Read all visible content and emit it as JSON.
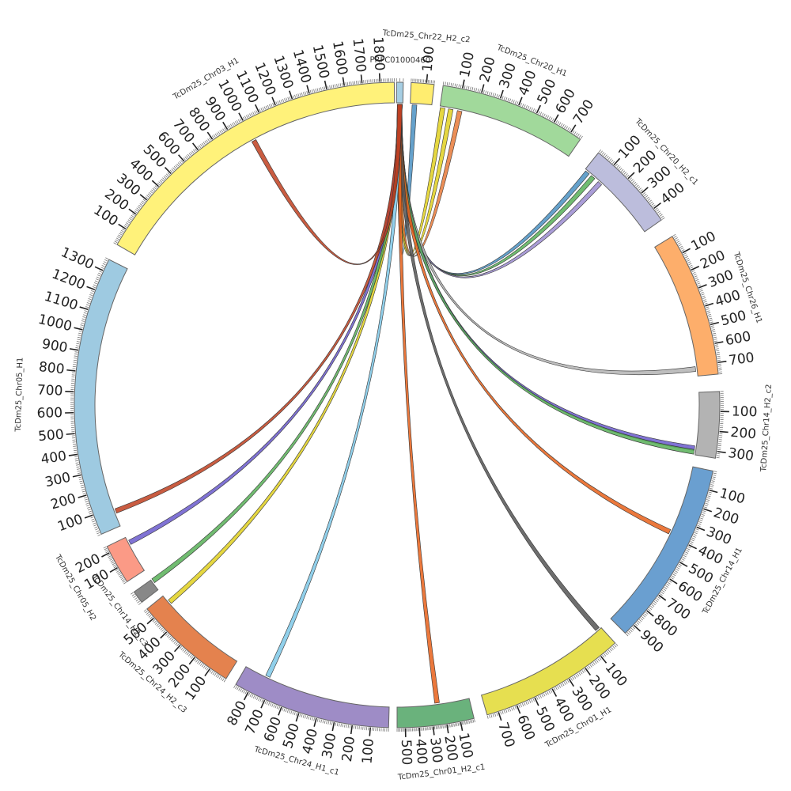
{
  "segments": [
    {
      "id": "PRFC01000460",
      "label": "PRFC01000460",
      "length": 20,
      "color": "#a6cee3",
      "tick_labels": []
    },
    {
      "id": "TcDm25_Chr22_H2_c2",
      "label": "TcDm25_Chr22_H2_c2",
      "length": 150,
      "color": "#ffed6f",
      "tick_labels": [
        "100"
      ]
    },
    {
      "id": "TcDm25_Chr20_H1",
      "label": "TcDm25_Chr20_H1",
      "length": 760,
      "color": "#a1d99b",
      "tick_labels": [
        "100",
        "200",
        "300",
        "400",
        "500",
        "600",
        "700"
      ]
    },
    {
      "id": "TcDm25_Chr20_H2_c1",
      "label": "TcDm25_Chr20_H2_c1",
      "length": 470,
      "color": "#bcbddc",
      "tick_labels": [
        "100",
        "200",
        "300",
        "400"
      ]
    },
    {
      "id": "TcDm25_Chr26_H1",
      "label": "TcDm25_Chr26_H1",
      "length": 760,
      "color": "#fdae6b",
      "tick_labels": [
        "100",
        "200",
        "300",
        "400",
        "500",
        "600",
        "700"
      ]
    },
    {
      "id": "TcDm25_Chr14_H2_c2",
      "label": "TcDm25_Chr14_H2_c2",
      "length": 335,
      "color": "#b3b3b3",
      "tick_labels": [
        "100",
        "200",
        "300"
      ]
    },
    {
      "id": "TcDm25_Chr14_H1",
      "label": "TcDm25_Chr14_H1",
      "length": 960,
      "color": "#6a9fd0",
      "tick_labels": [
        "100",
        "200",
        "300",
        "400",
        "500",
        "600",
        "700",
        "800",
        "900"
      ]
    },
    {
      "id": "TcDm25_Chr01_H1",
      "label": "TcDm25_Chr01_H1",
      "length": 760,
      "color": "#e6df50",
      "tick_labels": [
        "100",
        "200",
        "300",
        "400",
        "500",
        "600",
        "700"
      ]
    },
    {
      "id": "TcDm25_Chr01_H2_c1",
      "label": "TcDm25_Chr01_H2_c1",
      "length": 560,
      "color": "#6ab27c",
      "tick_labels": [
        "100",
        "200",
        "300",
        "400",
        "500"
      ]
    },
    {
      "id": "TcDm25_Chr24_H1_c1",
      "label": "TcDm25_Chr24_H1_c1",
      "length": 880,
      "color": "#9e8cc6",
      "tick_labels": [
        "100",
        "200",
        "300",
        "400",
        "500",
        "600",
        "700",
        "800"
      ]
    },
    {
      "id": "TcDm25_Chr24_H2_c3",
      "label": "TcDm25_Chr24_H2_c3",
      "length": 560,
      "color": "#e4824e",
      "tick_labels": [
        "100",
        "200",
        "300",
        "400",
        "500"
      ]
    },
    {
      "id": "TcDm25_Chr14_H2_c3",
      "label": "TcDm25_Chr14_H2_c3",
      "length": 60,
      "color": "#888888",
      "tick_labels": []
    },
    {
      "id": "TcDm25_Chr05_H2",
      "label": "TcDm25_Chr05_H2",
      "length": 240,
      "color": "#fb9a86",
      "tick_labels": [
        "100",
        "200"
      ]
    },
    {
      "id": "TcDm25_Chr05_H1",
      "label": "TcDm25_Chr05_H1",
      "length": 1360,
      "color": "#9ecae1",
      "tick_labels": [
        "100",
        "200",
        "300",
        "400",
        "500",
        "600",
        "700",
        "800",
        "900",
        "1000",
        "1100",
        "1200",
        "1300"
      ]
    },
    {
      "id": "TcDm25_Chr03_H1",
      "label": "TcDm25_Chr03_H1",
      "length": 1880,
      "color": "#fff27a",
      "tick_labels": [
        "100",
        "200",
        "300",
        "400",
        "500",
        "600",
        "700",
        "800",
        "900",
        "1000",
        "1100",
        "1200",
        "1300",
        "1400",
        "1500",
        "1600",
        "1700",
        "1800"
      ]
    }
  ],
  "links": [
    {
      "source": "PRFC01000460",
      "s_pos": 10,
      "target": "TcDm25_Chr22_H2_c2",
      "t_pos": 30,
      "color": "#4a90c2"
    },
    {
      "source": "PRFC01000460",
      "s_pos": 10,
      "target": "TcDm25_Chr20_H1",
      "t_pos": 15,
      "color": "#e0d020"
    },
    {
      "source": "PRFC01000460",
      "s_pos": 10,
      "target": "TcDm25_Chr20_H1",
      "t_pos": 60,
      "color": "#e0d020"
    },
    {
      "source": "PRFC01000460",
      "s_pos": 10,
      "target": "TcDm25_Chr20_H1",
      "t_pos": 110,
      "color": "#e87a3a"
    },
    {
      "source": "PRFC01000460",
      "s_pos": 10,
      "target": "TcDm25_Chr20_H2_c1",
      "t_pos": 20,
      "color": "#4a90c2"
    },
    {
      "source": "PRFC01000460",
      "s_pos": 10,
      "target": "TcDm25_Chr20_H2_c1",
      "t_pos": 60,
      "color": "#58b058"
    },
    {
      "source": "PRFC01000460",
      "s_pos": 10,
      "target": "TcDm25_Chr20_H2_c1",
      "t_pos": 110,
      "color": "#9b8cd0"
    },
    {
      "source": "PRFC01000460",
      "s_pos": 10,
      "target": "TcDm25_Chr26_H1",
      "t_pos": 720,
      "color": "#b3b3b3"
    },
    {
      "source": "PRFC01000460",
      "s_pos": 10,
      "target": "TcDm25_Chr14_H2_c2",
      "t_pos": 300,
      "color": "#6a5acd"
    },
    {
      "source": "PRFC01000460",
      "s_pos": 10,
      "target": "TcDm25_Chr14_H2_c2",
      "t_pos": 320,
      "color": "#58b058"
    },
    {
      "source": "PRFC01000460",
      "s_pos": 10,
      "target": "TcDm25_Chr14_H1",
      "t_pos": 380,
      "color": "#e8601a"
    },
    {
      "source": "PRFC01000460",
      "s_pos": 10,
      "target": "TcDm25_Chr01_H1",
      "t_pos": 20,
      "color": "#555555"
    },
    {
      "source": "PRFC01000460",
      "s_pos": 10,
      "target": "TcDm25_Chr01_H2_c1",
      "t_pos": 250,
      "color": "#e8601a"
    },
    {
      "source": "PRFC01000460",
      "s_pos": 10,
      "target": "TcDm25_Chr24_H1_c1",
      "t_pos": 740,
      "color": "#7ec8e8"
    },
    {
      "source": "PRFC01000460",
      "s_pos": 10,
      "target": "TcDm25_Chr24_H2_c3",
      "t_pos": 510,
      "color": "#e0d020"
    },
    {
      "source": "PRFC01000460",
      "s_pos": 10,
      "target": "TcDm25_Chr14_H2_c3",
      "t_pos": 50,
      "color": "#58b058"
    },
    {
      "source": "PRFC01000460",
      "s_pos": 10,
      "target": "TcDm25_Chr05_H2",
      "t_pos": 200,
      "color": "#6a5acd"
    },
    {
      "source": "PRFC01000460",
      "s_pos": 10,
      "target": "TcDm25_Chr05_H1",
      "t_pos": 80,
      "color": "#c04020"
    },
    {
      "source": "PRFC01000460",
      "s_pos": 10,
      "target": "TcDm25_Chr03_H1",
      "t_pos": 1000,
      "color": "#c04020"
    }
  ]
}
